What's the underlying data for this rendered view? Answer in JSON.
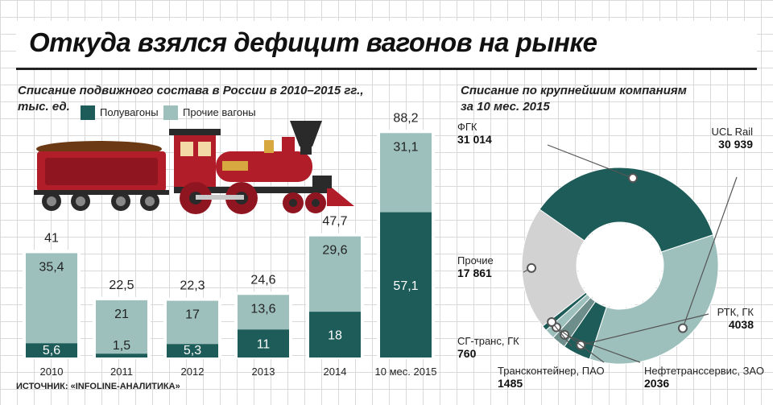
{
  "title": "Откуда взялся дефицит вагонов на рынке",
  "source": "ИСТОЧНИК: «INFOLINE-АНАЛИТИКА»",
  "colors": {
    "dark": "#1d5c58",
    "light": "#9dc0bd",
    "gray": "#d2d2d2",
    "slate": "#6e8e8c"
  },
  "icons": [
    "steam-locomotive-illustration"
  ],
  "chart_data": [
    {
      "type": "bar",
      "title": "Списание подвижного состава в России в 2010–2015 гг.,",
      "subtitle": "тыс. ед.",
      "categories": [
        "2010",
        "2011",
        "2012",
        "2013",
        "2014",
        "10 мес. 2015"
      ],
      "series": [
        {
          "name": "Полувагоны",
          "values": [
            5.6,
            1.5,
            5.3,
            11,
            18,
            57.1
          ],
          "labels": [
            "5,6",
            "1,5",
            "5,3",
            "11",
            "18",
            "57,1"
          ]
        },
        {
          "name": "Прочие вагоны",
          "values": [
            35.4,
            21,
            17,
            13.6,
            29.6,
            31.1
          ],
          "labels": [
            "35,4",
            "21",
            "17",
            "13,6",
            "29,6",
            "31,1"
          ]
        }
      ],
      "totals": [
        41,
        22.5,
        22.3,
        24.6,
        47.7,
        88.2
      ],
      "total_labels": [
        "41",
        "22,5",
        "22,3",
        "24,6",
        "47,7",
        "88,2"
      ],
      "stacked": true
    },
    {
      "type": "pie",
      "title": "Списание по крупнейшим компаниям",
      "subtitle": "за 10 мес. 2015",
      "slices": [
        {
          "name": "ФГК",
          "value": 31014,
          "label": "31 014"
        },
        {
          "name": "UCL Rail",
          "value": 30939,
          "label": "30 939"
        },
        {
          "name": "РТК, ГК",
          "value": 4038,
          "label": "4038"
        },
        {
          "name": "Нефтетранссервис, ЗАО",
          "value": 2036,
          "label": "2036"
        },
        {
          "name": "Трансконтейнер, ПАО",
          "value": 1485,
          "label": "1485"
        },
        {
          "name": "СГ-транс, ГК",
          "value": 760,
          "label": "760"
        },
        {
          "name": "Прочие",
          "value": 17861,
          "label": "17 861"
        }
      ],
      "donut": true
    }
  ]
}
